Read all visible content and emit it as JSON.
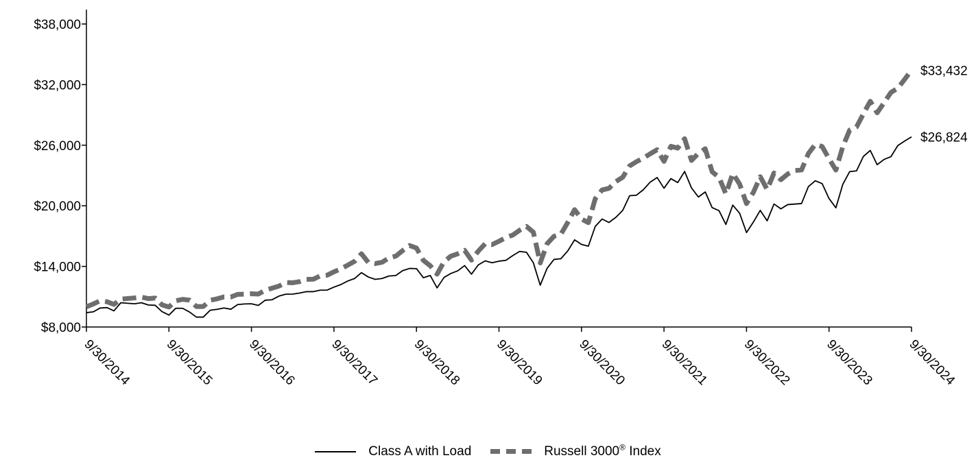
{
  "chart_data": {
    "type": "line",
    "xlabel": "",
    "ylabel": "",
    "ylim": [
      8000,
      38000
    ],
    "y_ticks": [
      "$8,000",
      "$14,000",
      "$20,000",
      "$26,000",
      "$32,000",
      "$38,000"
    ],
    "y_tick_values": [
      8000,
      14000,
      20000,
      26000,
      32000,
      38000
    ],
    "x_ticks": [
      "9/30/2014",
      "9/30/2015",
      "9/30/2016",
      "9/30/2017",
      "9/30/2018",
      "9/30/2019",
      "9/30/2020",
      "9/30/2021",
      "9/30/2022",
      "9/30/2023",
      "9/30/2024"
    ],
    "legend_position": "bottom-center",
    "grid": false,
    "series": [
      {
        "name": "Class A with Load",
        "style": "solid",
        "color": "#000000",
        "end_label": "$26,824",
        "values": [
          9420,
          9500,
          9880,
          9920,
          9600,
          10400,
          10350,
          10300,
          10400,
          10180,
          10150,
          9520,
          9180,
          9860,
          9850,
          9480,
          8980,
          8980,
          9660,
          9750,
          9880,
          9760,
          10220,
          10280,
          10300,
          10140,
          10650,
          10700,
          11060,
          11250,
          11260,
          11360,
          11500,
          11500,
          11650,
          11650,
          11950,
          12200,
          12550,
          12800,
          13380,
          12950,
          12720,
          12800,
          13050,
          13100,
          13580,
          13800,
          13780,
          12880,
          13100,
          11870,
          12900,
          13300,
          13560,
          14080,
          13230,
          14150,
          14550,
          14360,
          14520,
          14600,
          15070,
          15480,
          15400,
          14360,
          12140,
          13810,
          14690,
          14760,
          15530,
          16630,
          16180,
          16000,
          17960,
          18690,
          18350,
          18860,
          19550,
          21000,
          21050,
          21600,
          22350,
          22800,
          21740,
          22690,
          22300,
          23400,
          21770,
          20870,
          21370,
          19820,
          19520,
          18150,
          20070,
          19260,
          17350,
          18390,
          19550,
          18510,
          20180,
          19700,
          20120,
          20170,
          20220,
          21900,
          22480,
          22200,
          20720,
          19800,
          22120,
          23380,
          23460,
          24890,
          25480,
          24070,
          24590,
          24860,
          25960,
          26410,
          26824
        ]
      },
      {
        "name": "Russell 3000® Index",
        "style": "dashed",
        "color": "#6e6e6e",
        "end_label": "$33,432",
        "values": [
          10000,
          10280,
          10600,
          10500,
          10240,
          10760,
          10820,
          10880,
          10960,
          10810,
          10870,
          10190,
          9980,
          10600,
          10740,
          10660,
          10030,
          10030,
          10650,
          10790,
          10980,
          10970,
          11230,
          11250,
          11290,
          11260,
          11640,
          11840,
          12050,
          12410,
          12380,
          12490,
          12720,
          12730,
          13060,
          13130,
          13460,
          13760,
          14120,
          14500,
          15250,
          14390,
          14280,
          14410,
          14840,
          15020,
          15570,
          16070,
          15820,
          14600,
          14070,
          13230,
          14460,
          15010,
          15250,
          15590,
          14620,
          15520,
          16250,
          16160,
          16490,
          16860,
          17100,
          17580,
          17960,
          17390,
          14340,
          16250,
          16980,
          17180,
          18350,
          19620,
          18700,
          18330,
          20690,
          21570,
          21730,
          22400,
          22830,
          23950,
          24370,
          24720,
          25150,
          25550,
          24400,
          25890,
          25710,
          26640,
          24490,
          25190,
          25650,
          23370,
          22820,
          21180,
          23200,
          22160,
          20220,
          21330,
          22880,
          21620,
          23250,
          22580,
          23150,
          23490,
          23550,
          25170,
          26080,
          25870,
          24660,
          23540,
          25850,
          27490,
          27800,
          29110,
          30350,
          29210,
          30200,
          31220,
          31640,
          32520,
          33432
        ]
      }
    ]
  }
}
